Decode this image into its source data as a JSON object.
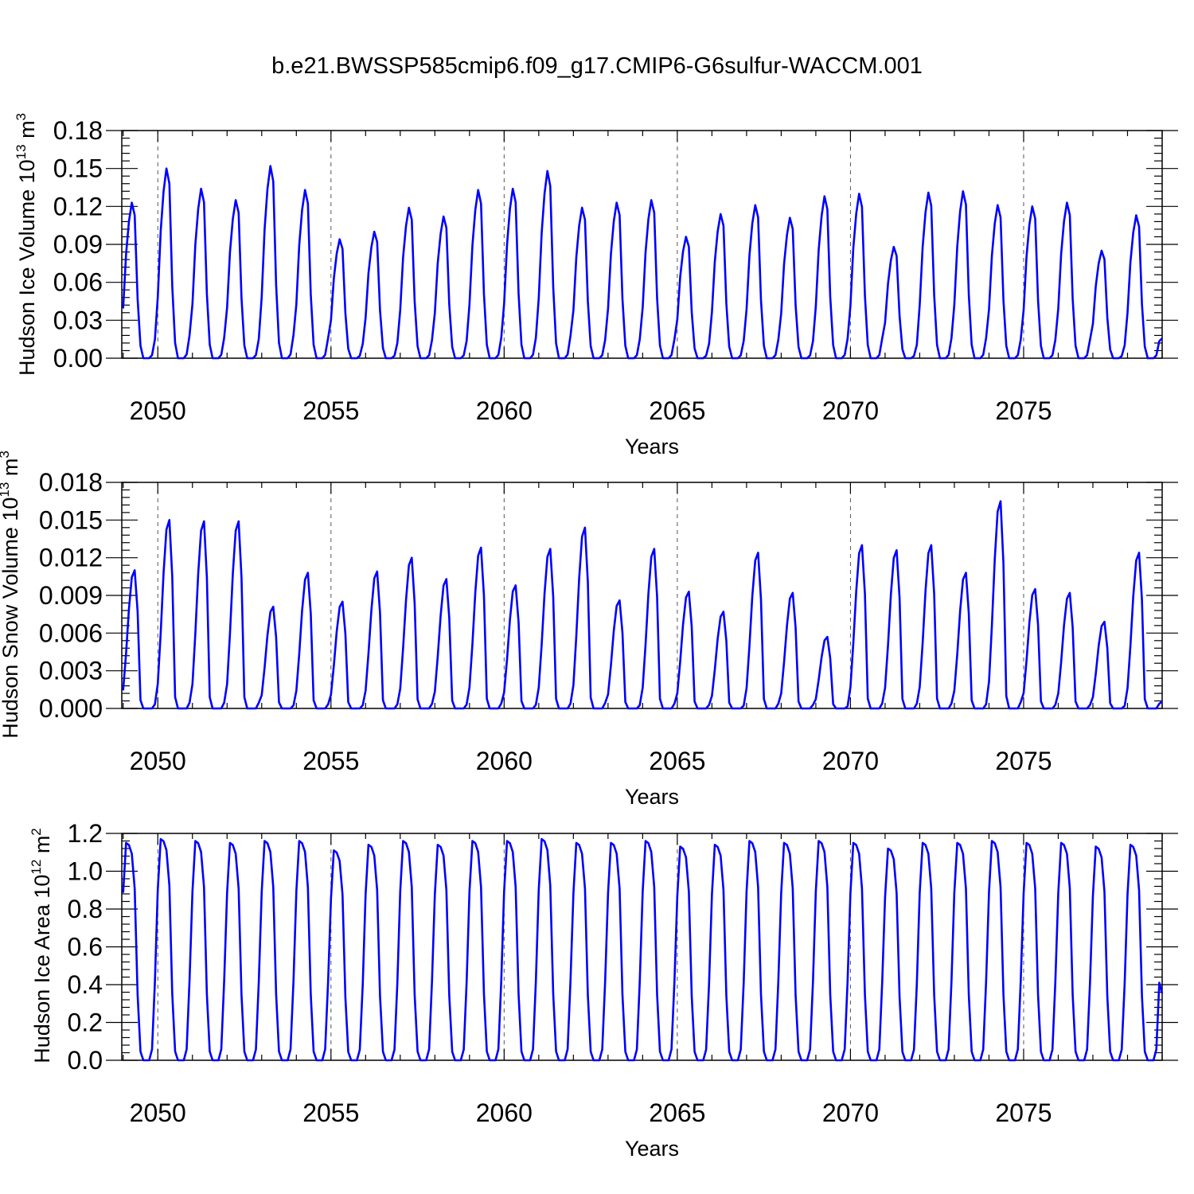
{
  "figure": {
    "title": "b.e21.BWSSP585cmip6.f09_g17.CMIP6-G6sulfur-WACCM.001"
  },
  "chart_data": [
    {
      "type": "line",
      "title": "",
      "xlabel": "Years",
      "ylabel": {
        "base": "Hudson Ice Volume 10",
        "exp": "13",
        "unit": " m",
        "unit_exp": "3"
      },
      "xlim": [
        2048.96,
        2079.0
      ],
      "ylim": [
        0.0,
        0.18
      ],
      "yticks": [
        "0.00",
        "0.03",
        "0.06",
        "0.09",
        "0.12",
        "0.15",
        "0.18"
      ],
      "xticks": [
        "2050",
        "2055",
        "2060",
        "2065",
        "2070",
        "2075"
      ],
      "grid": "dashed vertical lines at 2050, 2055, 2060, 2065, 2070, 2075",
      "series": [
        {
          "color": "#0000ff",
          "x_start": 2049.0,
          "x_step_months": 1,
          "peaks": [
            0.123,
            0.15,
            0.134,
            0.125,
            0.152,
            0.133,
            0.094,
            0.1,
            0.119,
            0.112,
            0.133,
            0.134,
            0.148,
            0.119,
            0.123,
            0.125,
            0.096,
            0.114,
            0.121,
            0.111,
            0.128,
            0.13,
            0.088,
            0.131,
            0.132,
            0.121,
            0.12,
            0.123,
            0.085,
            0.113
          ]
        }
      ]
    },
    {
      "type": "line",
      "title": "",
      "xlabel": "Years",
      "ylabel": {
        "base": "Hudson Snow Volume 10",
        "exp": "13",
        "unit": " m",
        "unit_exp": "3"
      },
      "xlim": [
        2048.96,
        2079.0
      ],
      "ylim": [
        0.0,
        0.018
      ],
      "yticks": [
        "0.000",
        "0.003",
        "0.006",
        "0.009",
        "0.012",
        "0.015",
        "0.018"
      ],
      "xticks": [
        "2050",
        "2055",
        "2060",
        "2065",
        "2070",
        "2075"
      ],
      "grid": "dashed vertical lines at 2050, 2055, 2060, 2065, 2070, 2075",
      "series": [
        {
          "color": "#0000ff",
          "x_start": 2049.0,
          "x_step_months": 1,
          "peaks": [
            0.011,
            0.015,
            0.0149,
            0.0149,
            0.0081,
            0.0108,
            0.0085,
            0.0109,
            0.012,
            0.0103,
            0.0128,
            0.0098,
            0.0127,
            0.0144,
            0.0086,
            0.0127,
            0.0093,
            0.0077,
            0.0124,
            0.0092,
            0.0057,
            0.013,
            0.0126,
            0.013,
            0.0108,
            0.0165,
            0.0095,
            0.0092,
            0.0069,
            0.0124
          ]
        }
      ]
    },
    {
      "type": "line",
      "title": "",
      "xlabel": "Years",
      "ylabel": {
        "base": "Hudson Ice Area 10",
        "exp": "12",
        "unit": " m",
        "unit_exp": "2"
      },
      "xlim": [
        2048.96,
        2079.0
      ],
      "ylim": [
        0.0,
        1.2
      ],
      "yticks": [
        "0.0",
        "0.2",
        "0.4",
        "0.6",
        "0.8",
        "1.0",
        "1.2"
      ],
      "xticks": [
        "2050",
        "2055",
        "2060",
        "2065",
        "2070",
        "2075"
      ],
      "grid": "dashed vertical lines at 2050, 2055, 2060, 2065, 2070, 2075",
      "series": [
        {
          "color": "#0000ff",
          "x_start": 2049.0,
          "x_step_months": 1,
          "peaks": [
            1.15,
            1.17,
            1.16,
            1.15,
            1.16,
            1.16,
            1.11,
            1.14,
            1.16,
            1.14,
            1.16,
            1.16,
            1.17,
            1.15,
            1.15,
            1.16,
            1.13,
            1.14,
            1.16,
            1.15,
            1.16,
            1.15,
            1.12,
            1.15,
            1.15,
            1.16,
            1.15,
            1.15,
            1.13,
            1.14
          ]
        }
      ]
    }
  ]
}
